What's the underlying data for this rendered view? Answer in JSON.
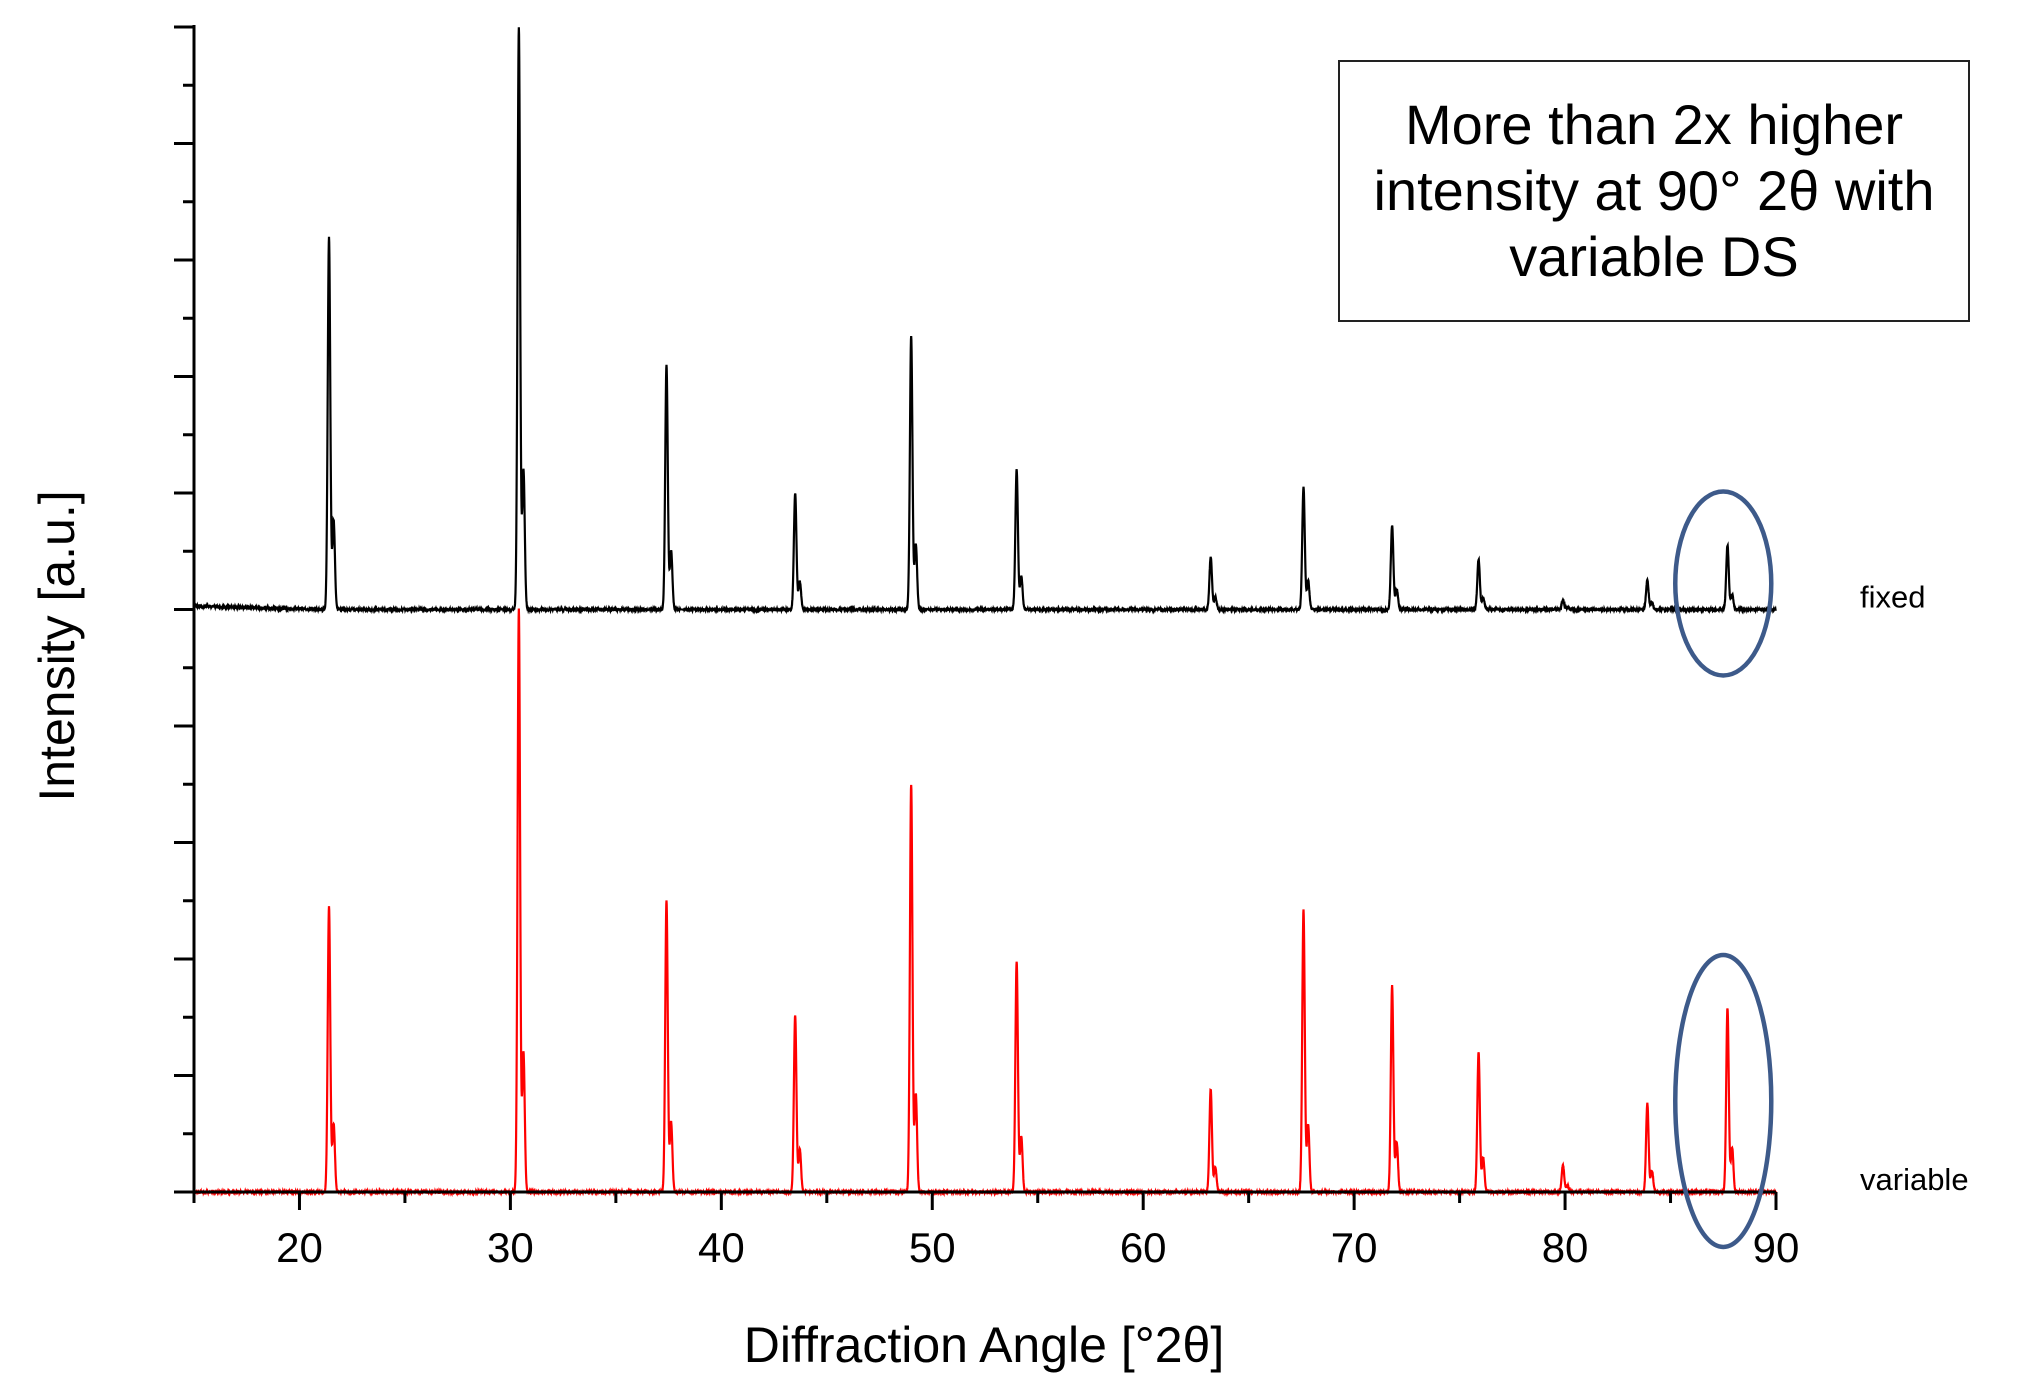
{
  "chart_data": {
    "type": "line",
    "xlabel": "Diffraction Angle [°2θ]",
    "ylabel": "Intensity [a.u.]",
    "xlim": [
      15,
      90
    ],
    "ylim": [
      0,
      10
    ],
    "x_ticks": [
      20,
      30,
      40,
      50,
      60,
      70,
      80,
      90
    ],
    "y_axis_tick_labels": false,
    "grid": false,
    "annotation": "More than 2x higher intensity at 90° 2θ with variable DS",
    "highlight_region": {
      "x_center": 87.5,
      "shape": "ellipse",
      "color": "#3d5a8a"
    },
    "series": [
      {
        "name": "fixed",
        "color": "#000000",
        "baseline": 5.0,
        "peaks": [
          {
            "x": 21.4,
            "height": 3.2
          },
          {
            "x": 30.4,
            "height": 5.0
          },
          {
            "x": 37.4,
            "height": 2.1
          },
          {
            "x": 43.5,
            "height": 1.0
          },
          {
            "x": 49.0,
            "height": 2.35
          },
          {
            "x": 54.0,
            "height": 1.2
          },
          {
            "x": 63.2,
            "height": 0.45
          },
          {
            "x": 67.6,
            "height": 1.05
          },
          {
            "x": 71.8,
            "height": 0.72
          },
          {
            "x": 75.9,
            "height": 0.43
          },
          {
            "x": 79.9,
            "height": 0.08
          },
          {
            "x": 83.9,
            "height": 0.25
          },
          {
            "x": 87.7,
            "height": 0.55
          }
        ]
      },
      {
        "name": "variable",
        "color": "#ff0000",
        "baseline": 0.0,
        "peaks": [
          {
            "x": 21.4,
            "height": 2.45
          },
          {
            "x": 30.4,
            "height": 5.0
          },
          {
            "x": 37.4,
            "height": 2.5
          },
          {
            "x": 43.5,
            "height": 1.52
          },
          {
            "x": 49.0,
            "height": 3.5
          },
          {
            "x": 54.0,
            "height": 1.98
          },
          {
            "x": 63.2,
            "height": 0.88
          },
          {
            "x": 67.6,
            "height": 2.42
          },
          {
            "x": 71.8,
            "height": 1.77
          },
          {
            "x": 75.9,
            "height": 1.2
          },
          {
            "x": 79.9,
            "height": 0.23
          },
          {
            "x": 83.9,
            "height": 0.76
          },
          {
            "x": 87.7,
            "height": 1.58
          }
        ]
      }
    ]
  }
}
